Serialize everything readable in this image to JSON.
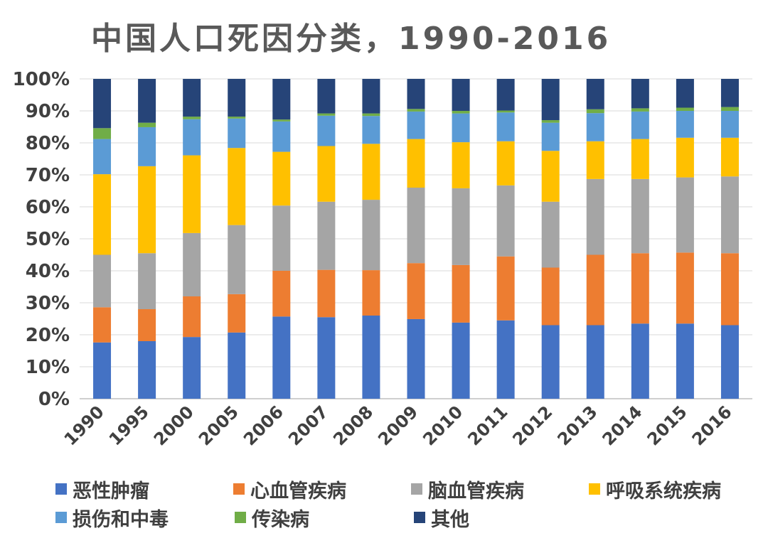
{
  "chart_data": {
    "type": "stacked-bar-percent",
    "title": "中国人口死因分类，1990-2016",
    "categories": [
      "1990",
      "1995",
      "2000",
      "2005",
      "2006",
      "2007",
      "2008",
      "2009",
      "2010",
      "2011",
      "2012",
      "2013",
      "2014",
      "2015",
      "2016"
    ],
    "ylim": [
      0,
      100
    ],
    "yticks": [
      "0%",
      "10%",
      "20%",
      "30%",
      "40%",
      "50%",
      "60%",
      "70%",
      "80%",
      "90%",
      "100%"
    ],
    "grid": true,
    "legend_position": "bottom",
    "series": [
      {
        "name": "恶性肿瘤",
        "color": "#4472C4",
        "values": [
          17.6,
          18.0,
          19.3,
          20.7,
          25.7,
          25.5,
          26.0,
          24.9,
          23.8,
          24.5,
          23.0,
          23.0,
          23.5,
          23.5,
          23.0
        ]
      },
      {
        "name": "心血管疾病",
        "color": "#ED7D31",
        "values": [
          11.0,
          10.0,
          12.7,
          12.0,
          14.3,
          14.8,
          14.2,
          17.5,
          18.0,
          20.0,
          18.0,
          22.0,
          22.0,
          22.2,
          22.5
        ]
      },
      {
        "name": "脑血管疾病",
        "color": "#A5A5A5",
        "values": [
          16.4,
          17.5,
          19.8,
          21.6,
          20.4,
          21.3,
          22.0,
          23.6,
          24.0,
          22.2,
          20.6,
          23.7,
          23.2,
          23.5,
          24.0
        ]
      },
      {
        "name": "呼吸系统疾病",
        "color": "#FFC000",
        "values": [
          25.2,
          27.2,
          24.3,
          24.1,
          16.8,
          17.4,
          17.5,
          15.2,
          14.4,
          13.8,
          15.9,
          11.8,
          12.5,
          12.4,
          12.1
        ]
      },
      {
        "name": "损伤和中毒",
        "color": "#5B9BD5",
        "values": [
          11.0,
          12.2,
          11.3,
          9.2,
          9.5,
          9.5,
          8.7,
          8.6,
          9.0,
          9.0,
          8.8,
          8.8,
          8.6,
          8.4,
          8.4
        ]
      },
      {
        "name": "传染病",
        "color": "#70AD47",
        "values": [
          3.4,
          1.4,
          0.8,
          0.6,
          0.6,
          0.7,
          0.8,
          0.8,
          0.8,
          0.6,
          0.8,
          1.2,
          1.0,
          1.0,
          1.2
        ]
      },
      {
        "name": "其他",
        "color": "#264478",
        "values": [
          15.4,
          13.7,
          11.8,
          11.8,
          12.7,
          10.8,
          10.8,
          9.4,
          10.0,
          9.9,
          12.9,
          9.5,
          9.2,
          9.0,
          8.8
        ]
      }
    ]
  }
}
